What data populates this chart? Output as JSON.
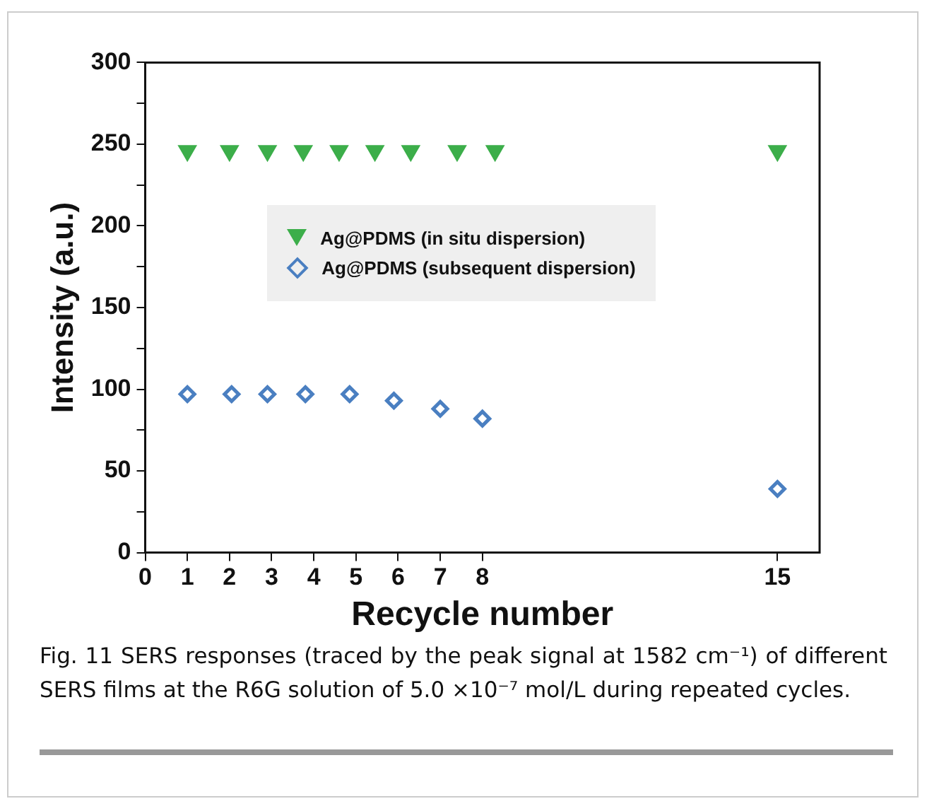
{
  "chart_data": {
    "type": "scatter",
    "xlabel": "Recycle number",
    "ylabel": "Intensity (a.u.)",
    "xlim": [
      0,
      16
    ],
    "xticks": [
      0,
      1,
      2,
      3,
      4,
      5,
      6,
      7,
      8,
      15
    ],
    "ylim": [
      0,
      300
    ],
    "yticks": [
      0,
      {
        "value": 25,
        "label": null
      },
      50,
      {
        "value": 75,
        "label": null
      },
      100,
      {
        "value": 125,
        "label": null
      },
      150,
      {
        "value": 175,
        "label": null
      },
      200,
      {
        "value": 225,
        "label": null
      },
      250,
      {
        "value": 275,
        "label": null
      },
      300
    ],
    "series": [
      {
        "name": "Ag@PDMS (in situ dispersion)",
        "color": "#3cae4a",
        "marker": "triangle",
        "x": [
          1,
          2,
          2.9,
          3.75,
          4.6,
          5.45,
          6.3,
          7.4,
          8.3,
          15
        ],
        "values": [
          246,
          246,
          246,
          246,
          246,
          246,
          246,
          246,
          246,
          246
        ]
      },
      {
        "name": "Ag@PDMS (subsequent dispersion)",
        "color": "#4a7fc1",
        "marker": "diamond",
        "x": [
          1,
          2.05,
          2.9,
          3.8,
          4.85,
          5.9,
          7,
          8,
          15
        ],
        "values": [
          97,
          97,
          97,
          97,
          97,
          93,
          88,
          82,
          39
        ]
      }
    ],
    "legend": "center",
    "grid": false,
    "annotations": [
      "Fig. 11 SERS responses (traced by the peak signal at 1582 cm⁻¹) of different SERS films at the R6G solution of 5.0 ×10⁻⁷ mol/L during repeated cycles."
    ]
  }
}
